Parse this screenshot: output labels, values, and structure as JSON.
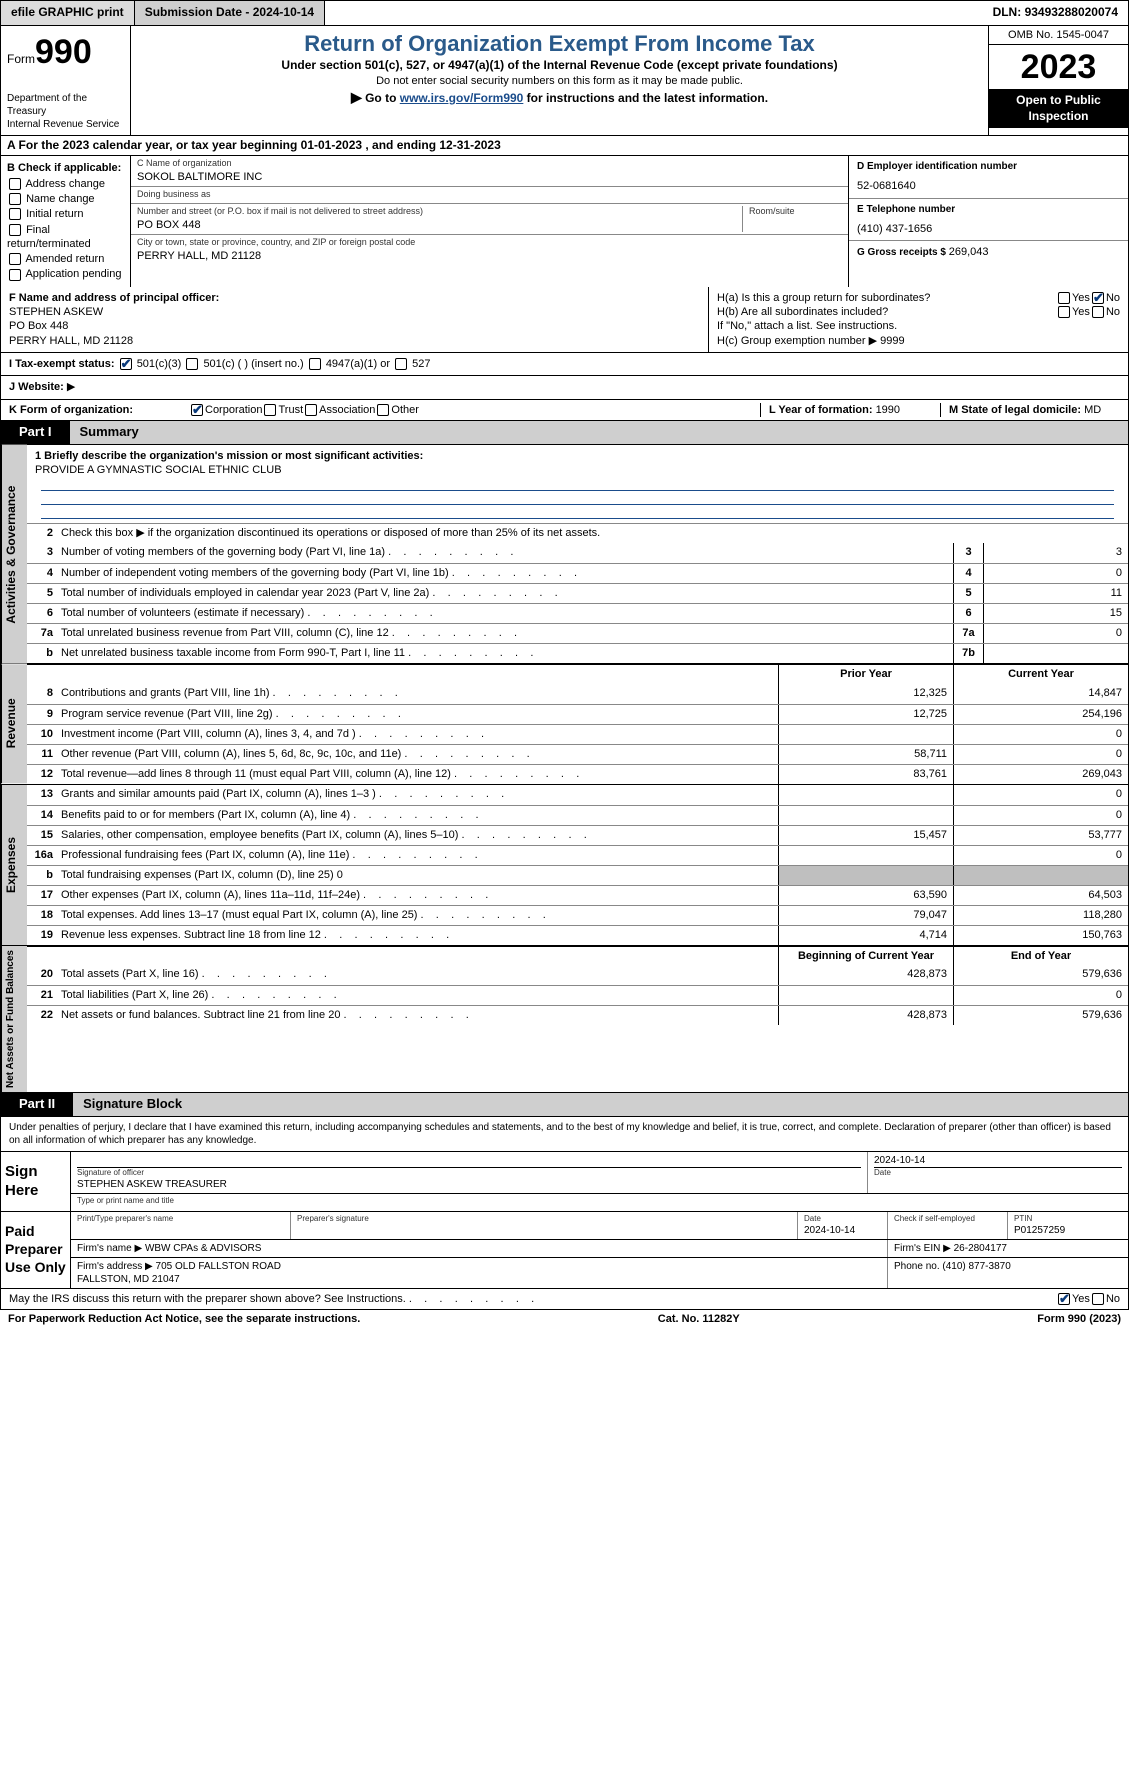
{
  "topbar": {
    "efile": "efile GRAPHIC print",
    "subdate_label": "Submission Date - ",
    "subdate": "2024-10-14",
    "dln_label": "DLN: ",
    "dln": "93493288020074"
  },
  "header": {
    "form_label": "Form",
    "form_no": "990",
    "dept": "Department of the Treasury\nInternal Revenue Service",
    "title": "Return of Organization Exempt From Income Tax",
    "sub1": "Under section 501(c), 527, or 4947(a)(1) of the Internal Revenue Code (except private foundations)",
    "sub2": "Do not enter social security numbers on this form as it may be made public.",
    "sub3a": "Go to ",
    "sub3link": "www.irs.gov/Form990",
    "sub3b": " for instructions and the latest information.",
    "omb": "OMB No. 1545-0047",
    "year": "2023",
    "openpub": "Open to Public Inspection"
  },
  "rowA": {
    "text": "A For the 2023 calendar year, or tax year beginning 01-01-2023    , and ending 12-31-2023"
  },
  "colB": {
    "label": "B Check if applicable:",
    "items": [
      "Address change",
      "Name change",
      "Initial return",
      "Final return/terminated",
      "Amended return",
      "Application pending"
    ]
  },
  "colC": {
    "name_lbl": "C Name of organization",
    "name": "SOKOL BALTIMORE INC",
    "dba_lbl": "Doing business as",
    "dba": "",
    "street_lbl": "Number and street (or P.O. box if mail is not delivered to street address)",
    "room_lbl": "Room/suite",
    "street": "PO BOX 448",
    "city_lbl": "City or town, state or province, country, and ZIP or foreign postal code",
    "city": "PERRY HALL, MD  21128"
  },
  "colD": {
    "ein_lbl": "D Employer identification number",
    "ein": "52-0681640",
    "tel_lbl": "E Telephone number",
    "tel": "(410) 437-1656",
    "gross_lbl": "G Gross receipts $ ",
    "gross": "269,043"
  },
  "secF": {
    "lbl": "F  Name and address of principal officer:",
    "name": "STEPHEN ASKEW",
    "addr1": "PO Box 448",
    "addr2": "PERRY HALL, MD  21128"
  },
  "secH": {
    "ha": "H(a)  Is this a group return for subordinates?",
    "hb": "H(b)  Are all subordinates included?",
    "hbnote": "If \"No,\" attach a list. See instructions.",
    "hc": "H(c)  Group exemption number  ▶",
    "hc_val": "9999",
    "yes": "Yes",
    "no": "No"
  },
  "secI": {
    "lbl": "I   Tax-exempt status:",
    "o1": "501(c)(3)",
    "o2": "501(c) (  ) (insert no.)",
    "o3": "4947(a)(1) or",
    "o4": "527"
  },
  "secJ": {
    "lbl": "J   Website:",
    "val": " ▶"
  },
  "secK": {
    "lbl": "K Form of organization:",
    "o1": "Corporation",
    "o2": "Trust",
    "o3": "Association",
    "o4": "Other"
  },
  "secL": {
    "lbl": "L Year of formation: ",
    "val": "1990"
  },
  "secM": {
    "lbl": "M State of legal domicile:",
    "val": "MD"
  },
  "partI": {
    "tab": "Part I",
    "title": "Summary"
  },
  "summary": {
    "mission_lbl": "1    Briefly describe the organization's mission or most significant activities:",
    "mission": "PROVIDE A GYMNASTIC SOCIAL ETHNIC CLUB",
    "line2": "Check this box ▶        if the organization discontinued its operations or disposed of more than 25% of its net assets.",
    "groups": {
      "gov": "Activities & Governance",
      "rev": "Revenue",
      "exp": "Expenses",
      "net": "Net Assets or Fund Balances"
    },
    "prior_hdr": "Prior Year",
    "curr_hdr": "Current Year",
    "begin_hdr": "Beginning of Current Year",
    "end_hdr": "End of Year",
    "rows_gov": [
      {
        "n": "3",
        "d": "Number of voting members of the governing body (Part VI, line 1a)",
        "box": "3",
        "v": "3"
      },
      {
        "n": "4",
        "d": "Number of independent voting members of the governing body (Part VI, line 1b)",
        "box": "4",
        "v": "0"
      },
      {
        "n": "5",
        "d": "Total number of individuals employed in calendar year 2023 (Part V, line 2a)",
        "box": "5",
        "v": "11"
      },
      {
        "n": "6",
        "d": "Total number of volunteers (estimate if necessary)",
        "box": "6",
        "v": "15"
      },
      {
        "n": "7a",
        "d": "Total unrelated business revenue from Part VIII, column (C), line 12",
        "box": "7a",
        "v": "0"
      },
      {
        "n": "b",
        "d": "Net unrelated business taxable income from Form 990-T, Part I, line 11",
        "box": "7b",
        "v": ""
      }
    ],
    "rows_rev": [
      {
        "n": "8",
        "d": "Contributions and grants (Part VIII, line 1h)",
        "p": "12,325",
        "c": "14,847"
      },
      {
        "n": "9",
        "d": "Program service revenue (Part VIII, line 2g)",
        "p": "12,725",
        "c": "254,196"
      },
      {
        "n": "10",
        "d": "Investment income (Part VIII, column (A), lines 3, 4, and 7d )",
        "p": "",
        "c": "0"
      },
      {
        "n": "11",
        "d": "Other revenue (Part VIII, column (A), lines 5, 6d, 8c, 9c, 10c, and 11e)",
        "p": "58,711",
        "c": "0"
      },
      {
        "n": "12",
        "d": "Total revenue—add lines 8 through 11 (must equal Part VIII, column (A), line 12)",
        "p": "83,761",
        "c": "269,043"
      }
    ],
    "rows_exp": [
      {
        "n": "13",
        "d": "Grants and similar amounts paid (Part IX, column (A), lines 1–3 )",
        "p": "",
        "c": "0"
      },
      {
        "n": "14",
        "d": "Benefits paid to or for members (Part IX, column (A), line 4)",
        "p": "",
        "c": "0"
      },
      {
        "n": "15",
        "d": "Salaries, other compensation, employee benefits (Part IX, column (A), lines 5–10)",
        "p": "15,457",
        "c": "53,777"
      },
      {
        "n": "16a",
        "d": "Professional fundraising fees (Part IX, column (A), line 11e)",
        "p": "",
        "c": "0"
      },
      {
        "n": "b",
        "d": "Total fundraising expenses (Part IX, column (D), line 25) 0",
        "shade": true
      },
      {
        "n": "17",
        "d": "Other expenses (Part IX, column (A), lines 11a–11d, 11f–24e)",
        "p": "63,590",
        "c": "64,503"
      },
      {
        "n": "18",
        "d": "Total expenses. Add lines 13–17 (must equal Part IX, column (A), line 25)",
        "p": "79,047",
        "c": "118,280"
      },
      {
        "n": "19",
        "d": "Revenue less expenses. Subtract line 18 from line 12",
        "p": "4,714",
        "c": "150,763"
      }
    ],
    "rows_net": [
      {
        "n": "20",
        "d": "Total assets (Part X, line 16)",
        "p": "428,873",
        "c": "579,636"
      },
      {
        "n": "21",
        "d": "Total liabilities (Part X, line 26)",
        "p": "",
        "c": "0"
      },
      {
        "n": "22",
        "d": "Net assets or fund balances. Subtract line 21 from line 20",
        "p": "428,873",
        "c": "579,636"
      }
    ]
  },
  "partII": {
    "tab": "Part II",
    "title": "Signature Block"
  },
  "sig": {
    "decl": "Under penalties of perjury, I declare that I have examined this return, including accompanying schedules and statements, and to the best of my knowledge and belief, it is true, correct, and complete. Declaration of preparer (other than officer) is based on all information of which preparer has any knowledge.",
    "sign_here": "Sign Here",
    "sig_officer_lbl": "Signature of officer",
    "sig_officer": "STEPHEN ASKEW  TREASURER",
    "type_name_lbl": "Type or print name and title",
    "date_lbl": "Date",
    "date": "2024-10-14",
    "paid_lbl": "Paid Preparer Use Only",
    "prep_name_lbl": "Print/Type preparer's name",
    "prep_sig_lbl": "Preparer's signature",
    "prep_date_lbl": "Date",
    "prep_date": "2024-10-14",
    "self_emp": "Check         if self-employed",
    "ptin_lbl": "PTIN",
    "ptin": "P01257259",
    "firm_name_lbl": "Firm's name    ▶",
    "firm_name": "WBW CPAs & ADVISORS",
    "firm_ein_lbl": "Firm's EIN ▶",
    "firm_ein": "26-2804177",
    "firm_addr_lbl": "Firm's address ▶",
    "firm_addr": "705 OLD FALLSTON ROAD\nFALLSTON, MD  21047",
    "phone_lbl": "Phone no. ",
    "phone": "(410) 877-3870"
  },
  "bottom": {
    "discuss": "May the IRS discuss this return with the preparer shown above? See Instructions.",
    "yes": "Yes",
    "no": "No"
  },
  "footer": {
    "pra": "For Paperwork Reduction Act Notice, see the separate instructions.",
    "cat": "Cat. No. 11282Y",
    "form": "Form 990 (2023)"
  }
}
